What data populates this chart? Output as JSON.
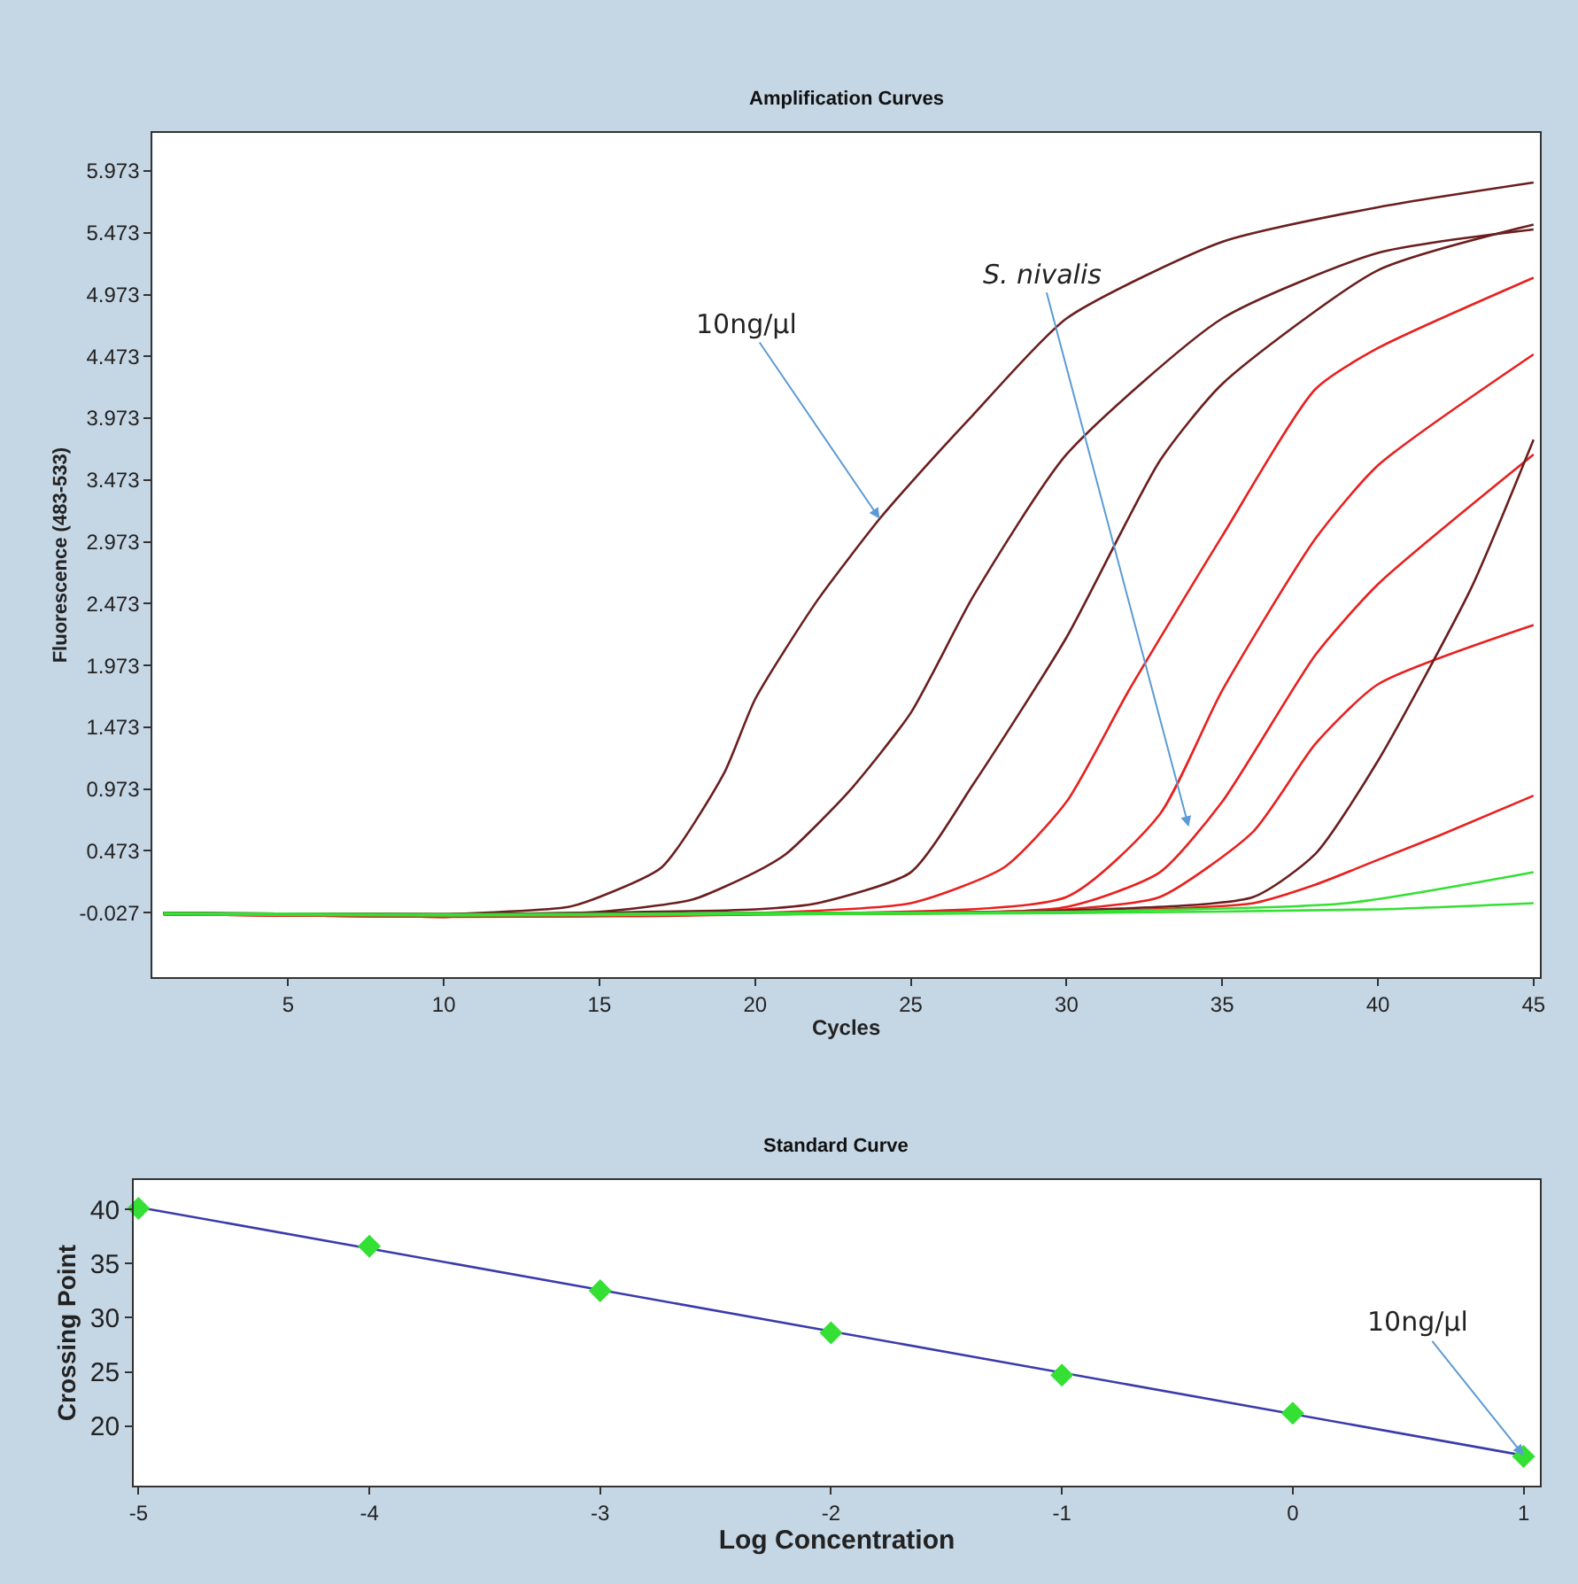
{
  "chart_data": [
    {
      "type": "line",
      "title": "Amplification Curves",
      "xlabel": "Cycles",
      "ylabel": "Fluorescence (483-533)",
      "xlim": [
        0.65,
        45.2
      ],
      "xticks": [
        5,
        10,
        15,
        20,
        25,
        30,
        35,
        40,
        45
      ],
      "ylim": [
        -0.55,
        6.28
      ],
      "yticks": [
        -0.027,
        0.473,
        0.973,
        1.473,
        1.973,
        2.473,
        2.973,
        3.473,
        3.973,
        4.473,
        4.973,
        5.473,
        5.973
      ],
      "grid": false,
      "marker": "none",
      "line_style": "solid",
      "annotations": [
        {
          "text": "10ng/µl",
          "x": 24,
          "y": 3.16
        },
        "S. nivalis"
      ],
      "series": [
        {
          "color": "#6b1e1e",
          "x": [
            1,
            5,
            10,
            14,
            15,
            17,
            19,
            20,
            22,
            24,
            25,
            27,
            30,
            35,
            40,
            45
          ],
          "values": [
            -0.03,
            -0.05,
            -0.04,
            0.02,
            0.1,
            0.34,
            1.1,
            1.7,
            2.5,
            3.16,
            3.45,
            4.0,
            4.78,
            5.4,
            5.68,
            5.88
          ]
        },
        {
          "color": "#6b1e1e",
          "x": [
            1,
            10,
            15,
            18,
            20,
            21,
            23,
            25,
            27,
            30,
            35,
            40,
            45
          ],
          "values": [
            -0.03,
            -0.04,
            -0.02,
            0.08,
            0.3,
            0.45,
            0.95,
            1.59,
            2.53,
            3.68,
            4.78,
            5.31,
            5.5
          ]
        },
        {
          "color": "#6b1e1e",
          "x": [
            1,
            10,
            20,
            22,
            25,
            27,
            30,
            33,
            35,
            40,
            45
          ],
          "values": [
            -0.03,
            -0.04,
            0.0,
            0.05,
            0.3,
            1.01,
            2.2,
            3.63,
            4.25,
            5.17,
            5.54
          ]
        },
        {
          "color": "#e8201e",
          "x": [
            1,
            10,
            20,
            25,
            28,
            30,
            32,
            35,
            38,
            40,
            45
          ],
          "values": [
            -0.04,
            -0.05,
            -0.03,
            0.05,
            0.34,
            0.87,
            1.77,
            3.02,
            4.21,
            4.54,
            5.11
          ]
        },
        {
          "color": "#e8201e",
          "x": [
            1,
            10,
            20,
            30,
            33,
            35,
            38,
            40,
            45
          ],
          "values": [
            -0.04,
            -0.06,
            -0.04,
            0.1,
            0.77,
            1.77,
            3.0,
            3.59,
            4.49
          ]
        },
        {
          "color": "#e8201e",
          "x": [
            1,
            10,
            20,
            30,
            33,
            35,
            38,
            40,
            45
          ],
          "values": [
            -0.04,
            -0.06,
            -0.04,
            0.02,
            0.3,
            0.87,
            2.06,
            2.63,
            3.68
          ]
        },
        {
          "color": "#e8201e",
          "x": [
            1,
            10,
            20,
            30,
            33,
            36,
            38,
            40,
            45
          ],
          "values": [
            -0.04,
            -0.06,
            -0.04,
            0.0,
            0.1,
            0.63,
            1.34,
            1.82,
            2.3
          ]
        },
        {
          "color": "#e8201e",
          "x": [
            1,
            10,
            20,
            30,
            36,
            38,
            40,
            42,
            45
          ],
          "values": [
            -0.04,
            -0.06,
            -0.04,
            -0.02,
            0.05,
            0.2,
            0.4,
            0.6,
            0.92
          ]
        },
        {
          "color": "#6b1e1e",
          "x": [
            1,
            10,
            20,
            30,
            36,
            38,
            40,
            43,
            45
          ],
          "values": [
            -0.03,
            -0.04,
            -0.03,
            -0.01,
            0.1,
            0.45,
            1.2,
            2.6,
            3.8
          ]
        },
        {
          "color": "#33e033",
          "x": [
            1,
            10,
            20,
            30,
            39,
            45
          ],
          "values": [
            -0.03,
            -0.04,
            -0.03,
            -0.02,
            0.05,
            0.3
          ]
        },
        {
          "color": "#33e033",
          "x": [
            1,
            10,
            20,
            30,
            40,
            45
          ],
          "values": [
            -0.04,
            -0.05,
            -0.04,
            -0.03,
            0.0,
            0.05
          ]
        }
      ]
    },
    {
      "type": "scatter",
      "title": "Standard Curve",
      "xlabel": "Log Concentration",
      "ylabel": "Crossing Point",
      "xlim": [
        -5.02,
        1.07
      ],
      "xticks": [
        -5,
        -4,
        -3,
        -2,
        -1,
        0,
        1
      ],
      "ylim": [
        14.5,
        42.7
      ],
      "yticks": [
        20,
        25,
        30,
        35,
        40
      ],
      "grid": false,
      "annotations": [
        {
          "text": "10ng/µl",
          "x": 1,
          "y": 17.3
        }
      ],
      "series": [
        {
          "type": "line",
          "color": "#3b3bab",
          "marker": "none",
          "x": [
            -5,
            1
          ],
          "values": [
            40.2,
            17.3
          ]
        },
        {
          "type": "scatter",
          "color": "#33e033",
          "marker": "diamond",
          "x": [
            -5,
            -4,
            -3,
            -2,
            -1,
            0,
            1
          ],
          "values": [
            40.1,
            36.6,
            32.5,
            28.6,
            24.7,
            21.2,
            17.2
          ]
        }
      ]
    }
  ]
}
